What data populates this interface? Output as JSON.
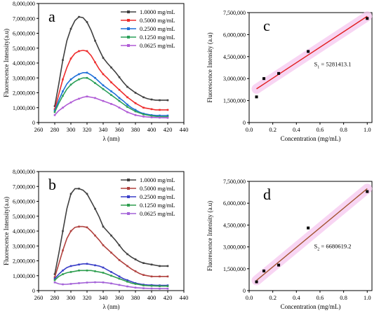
{
  "chart_data": [
    {
      "panel": "a",
      "type": "line",
      "xlabel": "λ (nm)",
      "ylabel": "Fluorescence Intensity(a.u)",
      "xlim": [
        260,
        440
      ],
      "ylim": [
        0,
        8000000
      ],
      "xticks": [
        260,
        280,
        300,
        320,
        340,
        360,
        380,
        400,
        420,
        440
      ],
      "yticks": [
        0,
        1000000,
        2000000,
        3000000,
        4000000,
        5000000,
        6000000,
        7000000,
        8000000
      ],
      "ytick_labels": [
        "0",
        "1,000,000",
        "2,000,000",
        "3,000,000",
        "4,000,000",
        "5,000,000",
        "6,000,000",
        "7,000,000",
        "8,000,000"
      ],
      "legend_position": "top-right",
      "x": [
        280,
        285,
        290,
        295,
        300,
        305,
        310,
        315,
        320,
        325,
        330,
        335,
        340,
        345,
        350,
        355,
        360,
        365,
        370,
        375,
        380,
        385,
        390,
        395,
        400,
        405,
        410,
        415,
        420
      ],
      "series": [
        {
          "name": "1.0000 mg/mL",
          "color": "#404040",
          "values": [
            1100000,
            2600000,
            4200000,
            5500000,
            6300000,
            6850000,
            7100000,
            7050000,
            6750000,
            6200000,
            5500000,
            4900000,
            4350000,
            4000000,
            3700000,
            3400000,
            3050000,
            2700000,
            2400000,
            2200000,
            2000000,
            1850000,
            1700000,
            1600000,
            1550000,
            1500000,
            1500000,
            1500000,
            1500000
          ]
        },
        {
          "name": "0.5000 mg/mL",
          "color": "#ee2c2c",
          "values": [
            900000,
            1900000,
            2900000,
            3700000,
            4300000,
            4650000,
            4800000,
            4850000,
            4800000,
            4500000,
            4050000,
            3600000,
            3250000,
            3000000,
            2700000,
            2450000,
            2200000,
            1950000,
            1700000,
            1500000,
            1300000,
            1150000,
            1000000,
            950000,
            900000,
            850000,
            850000,
            850000,
            850000
          ]
        },
        {
          "name": "0.2500 mg/mL",
          "color": "#1e6fd9",
          "values": [
            800000,
            1500000,
            2100000,
            2600000,
            2900000,
            3100000,
            3250000,
            3350000,
            3350000,
            3200000,
            3000000,
            2750000,
            2500000,
            2300000,
            2100000,
            1900000,
            1650000,
            1450000,
            1200000,
            1000000,
            850000,
            700000,
            600000,
            550000,
            500000,
            480000,
            470000,
            470000,
            470000
          ]
        },
        {
          "name": "0.1250 mg/mL",
          "color": "#2ca05a",
          "values": [
            700000,
            1300000,
            1800000,
            2250000,
            2550000,
            2750000,
            2900000,
            3000000,
            3000000,
            2850000,
            2650000,
            2450000,
            2250000,
            2050000,
            1850000,
            1650000,
            1450000,
            1250000,
            1050000,
            900000,
            750000,
            650000,
            550000,
            500000,
            450000,
            420000,
            400000,
            400000,
            400000
          ]
        },
        {
          "name": "0.0625 mg/mL",
          "color": "#b05cd6",
          "values": [
            500000,
            800000,
            1000000,
            1200000,
            1350000,
            1500000,
            1600000,
            1700000,
            1750000,
            1700000,
            1650000,
            1550000,
            1450000,
            1350000,
            1250000,
            1150000,
            1000000,
            850000,
            700000,
            600000,
            500000,
            450000,
            400000,
            370000,
            350000,
            340000,
            330000,
            320000,
            320000
          ]
        }
      ]
    },
    {
      "panel": "b",
      "type": "line",
      "xlabel": "λ (nm)",
      "ylabel": "Fluorescence Intensity(a.u)",
      "xlim": [
        260,
        440
      ],
      "ylim": [
        0,
        8000000
      ],
      "xticks": [
        260,
        280,
        300,
        320,
        340,
        360,
        380,
        400,
        420,
        440
      ],
      "yticks": [
        0,
        1000000,
        2000000,
        3000000,
        4000000,
        5000000,
        6000000,
        7000000,
        8000000
      ],
      "ytick_labels": [
        "0",
        "1,000,000",
        "2,000,000",
        "3,000,000",
        "4,000,000",
        "5,000,000",
        "6,000,000",
        "7,000,000",
        "8,000,000"
      ],
      "legend_position": "top-right",
      "x": [
        280,
        285,
        290,
        295,
        300,
        305,
        310,
        315,
        320,
        325,
        330,
        335,
        340,
        345,
        350,
        355,
        360,
        365,
        370,
        375,
        380,
        385,
        390,
        395,
        400,
        405,
        410,
        415,
        420
      ],
      "series": [
        {
          "name": "1.0000 mg/mL",
          "color": "#404040",
          "values": [
            1100000,
            2500000,
            4000000,
            5500000,
            6500000,
            6850000,
            6850000,
            6750000,
            6500000,
            6000000,
            5500000,
            4950000,
            4300000,
            4000000,
            3700000,
            3400000,
            3050000,
            2700000,
            2450000,
            2250000,
            2100000,
            1950000,
            1850000,
            1800000,
            1750000,
            1700000,
            1650000,
            1650000,
            1650000
          ]
        },
        {
          "name": "0.5000 mg/mL",
          "color": "#b0413e",
          "values": [
            900000,
            1800000,
            2700000,
            3500000,
            4000000,
            4250000,
            4300000,
            4300000,
            4250000,
            4000000,
            3700000,
            3400000,
            3050000,
            2800000,
            2550000,
            2300000,
            2050000,
            1850000,
            1650000,
            1450000,
            1300000,
            1150000,
            1050000,
            1000000,
            950000,
            950000,
            950000,
            950000,
            950000
          ]
        },
        {
          "name": "0.2500 mg/mL",
          "color": "#3a3fc8",
          "values": [
            800000,
            1100000,
            1350000,
            1550000,
            1650000,
            1700000,
            1750000,
            1800000,
            1800000,
            1750000,
            1700000,
            1650000,
            1550000,
            1400000,
            1250000,
            1100000,
            950000,
            800000,
            700000,
            600000,
            500000,
            450000,
            400000,
            380000,
            370000,
            360000,
            350000,
            350000,
            350000
          ]
        },
        {
          "name": "0.1250 mg/mL",
          "color": "#2e9e4f",
          "values": [
            700000,
            950000,
            1100000,
            1200000,
            1250000,
            1300000,
            1350000,
            1350000,
            1350000,
            1350000,
            1300000,
            1250000,
            1200000,
            1100000,
            1000000,
            900000,
            800000,
            700000,
            600000,
            500000,
            450000,
            400000,
            350000,
            330000,
            320000,
            310000,
            300000,
            300000,
            300000
          ]
        },
        {
          "name": "0.0625 mg/mL",
          "color": "#a463d8",
          "values": [
            550000,
            450000,
            420000,
            430000,
            450000,
            480000,
            500000,
            520000,
            540000,
            550000,
            560000,
            560000,
            550000,
            520000,
            480000,
            430000,
            380000,
            330000,
            280000,
            240000,
            200000,
            180000,
            160000,
            150000,
            140000,
            130000,
            130000,
            130000,
            130000
          ]
        }
      ]
    },
    {
      "panel": "c",
      "type": "scatter",
      "xlabel": "Concentration (mg/mL)",
      "ylabel": "Fluorescence Intensity (a.u)",
      "xlim": [
        0,
        1.04
      ],
      "ylim": [
        0,
        7500000
      ],
      "xticks": [
        0.0,
        0.2,
        0.4,
        0.6,
        0.8,
        1.0
      ],
      "xtick_labels": [
        "0.0",
        "0.2",
        "0.4",
        "0.6",
        "0.8",
        "1.0"
      ],
      "yticks": [
        0,
        1500000,
        3000000,
        4500000,
        6000000,
        7500000
      ],
      "ytick_labels": [
        "0",
        "1,500,000",
        "3,000,000",
        "4,500,000",
        "6,000,000",
        "7,500,000"
      ],
      "points": {
        "x": [
          0.0625,
          0.125,
          0.25,
          0.5,
          1.0
        ],
        "y": [
          1750000,
          3000000,
          3350000,
          4850000,
          7100000
        ]
      },
      "fit_line": {
        "color": "#e01e1e",
        "x": [
          0.0625,
          1.0
        ],
        "y": [
          2300000,
          7250000
        ]
      },
      "annotation": {
        "label": "S",
        "sub": "1",
        "text": " = 5281413.1"
      }
    },
    {
      "panel": "d",
      "type": "scatter",
      "xlabel": "Concentration (mg/mL)",
      "ylabel": "Fluorescence Intensity (a.u)",
      "xlim": [
        0,
        1.04
      ],
      "ylim": [
        0,
        7500000
      ],
      "xticks": [
        0.0,
        0.2,
        0.4,
        0.6,
        0.8,
        1.0
      ],
      "xtick_labels": [
        "0.0",
        "0.2",
        "0.4",
        "0.6",
        "0.8",
        "1.0"
      ],
      "yticks": [
        0,
        1500000,
        3000000,
        4500000,
        6000000,
        7500000
      ],
      "ytick_labels": [
        "0",
        "1,500,000",
        "3,000,000",
        "4,500,000",
        "6,000,000",
        "7,500,000"
      ],
      "points": {
        "x": [
          0.0625,
          0.125,
          0.25,
          0.5,
          1.0
        ],
        "y": [
          600000,
          1350000,
          1750000,
          4300000,
          6800000
        ]
      },
      "fit_line": {
        "color": "#a0522d",
        "x": [
          0.0625,
          1.0
        ],
        "y": [
          700000,
          7000000
        ]
      },
      "annotation": {
        "label": "S",
        "sub": "2",
        "text": " = 6680619.2"
      }
    }
  ]
}
